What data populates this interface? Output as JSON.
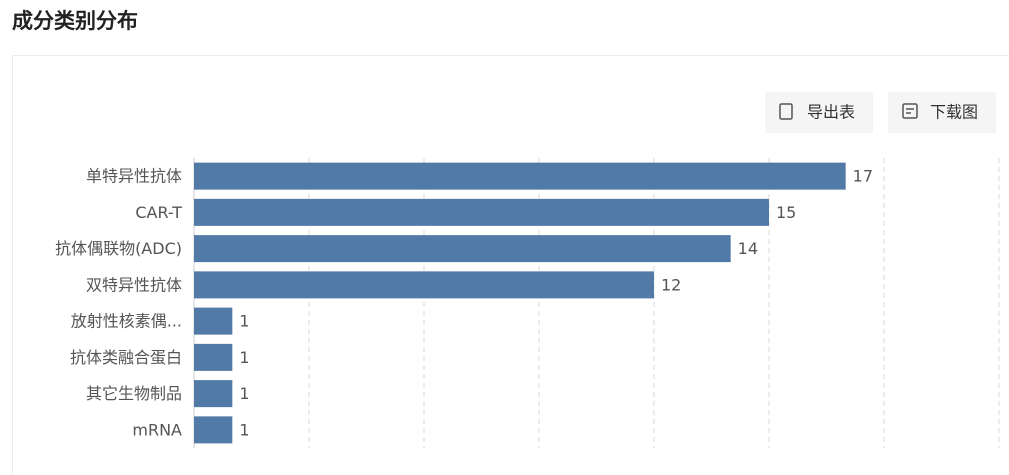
{
  "chart_data": {
    "type": "hbar",
    "title": "成分类别分布",
    "categories": [
      "单特异性抗体",
      "CAR-T",
      "抗体偶联物(ADC)",
      "双特异性抗体",
      "放射性核素偶...",
      "抗体类融合蛋白",
      "其它生物制品",
      "mRNA"
    ],
    "values": [
      17,
      15,
      14,
      12,
      1,
      1,
      1,
      1
    ],
    "color": "#527aa6",
    "xlim": [
      0,
      21
    ],
    "xticks": [
      0,
      3,
      6,
      9,
      12,
      15,
      18,
      21
    ],
    "grid": true
  },
  "toolbar": [
    "导出表",
    "下载图"
  ]
}
